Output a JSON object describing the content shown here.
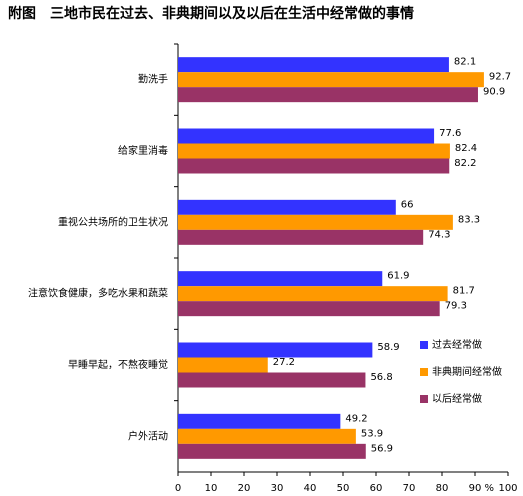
{
  "chart_data": {
    "type": "bar",
    "orientation": "horizontal",
    "title": "附图　三地市民在过去、非典期间以及以后在生活中经常做的事情",
    "categories": [
      "勤洗手",
      "给家里消毒",
      "重视公共场所的卫生状况",
      "注意饮食健康，多吃水果和蔬菜",
      "早睡早起，不熬夜睡觉",
      "户外活动"
    ],
    "series": [
      {
        "name": "过去经常做",
        "color": "#3333ff",
        "values": [
          82.1,
          77.6,
          66,
          61.9,
          58.9,
          49.2
        ]
      },
      {
        "name": "非典期间经常做",
        "color": "#ff9900",
        "values": [
          92.7,
          82.4,
          83.3,
          81.7,
          27.2,
          53.9
        ]
      },
      {
        "name": "以后经常做",
        "color": "#993366",
        "values": [
          90.9,
          82.2,
          74.3,
          79.3,
          56.8,
          56.9
        ]
      }
    ],
    "xlim": [
      0,
      100
    ],
    "xticks": [
      0,
      10,
      20,
      30,
      40,
      50,
      60,
      70,
      80,
      90,
      100
    ],
    "xlabel": "%",
    "legend": "right",
    "grid": false
  }
}
